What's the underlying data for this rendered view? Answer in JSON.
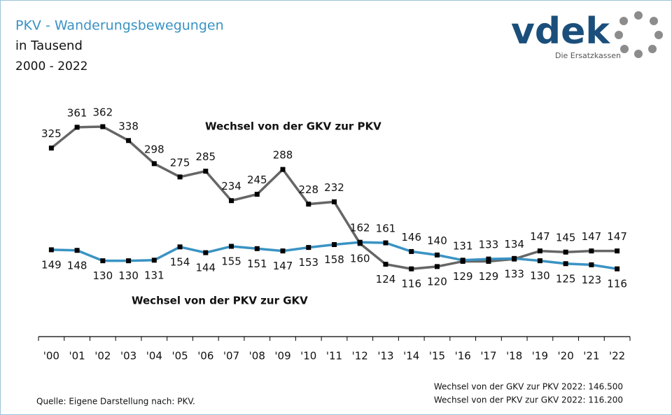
{
  "chart_data": {
    "type": "line",
    "title": "PKV - Wanderungsbewegungen",
    "subtitle": [
      "in Tausend",
      "2000 - 2022"
    ],
    "logo": {
      "text": "vdek",
      "tagline": "Die Ersatzkassen"
    },
    "categories": [
      "'00",
      "'01",
      "'02",
      "'03",
      "'04",
      "'05",
      "'06",
      "'07",
      "'08",
      "'09",
      "'10",
      "'11",
      "'12",
      "'13",
      "'14",
      "'15",
      "'16",
      "'17",
      "'18",
      "'19",
      "'20",
      "'21",
      "'22"
    ],
    "series": [
      {
        "name": "Wechsel von der GKV zur PKV",
        "color": "#666666",
        "values": [
          325,
          361,
          362,
          338,
          298,
          275,
          285,
          234,
          245,
          288,
          228,
          232,
          160,
          124,
          116,
          120,
          129,
          129,
          133,
          147,
          145,
          147,
          147
        ]
      },
      {
        "name": "Wechsel von der PKV zur GKV",
        "color": "#3a93c3",
        "values": [
          149,
          148,
          130,
          130,
          131,
          154,
          144,
          155,
          151,
          147,
          153,
          158,
          162,
          161,
          146,
          140,
          131,
          133,
          134,
          130,
          125,
          123,
          116
        ]
      }
    ],
    "ylim": [
      0,
      400
    ],
    "source": "Quelle: Eigene Darstellung nach: PKV.",
    "notes": [
      "Wechsel von der GKV zur PKV 2022: 146.500",
      "Wechsel von der PKV zur GKV 2022: 116.200"
    ]
  }
}
